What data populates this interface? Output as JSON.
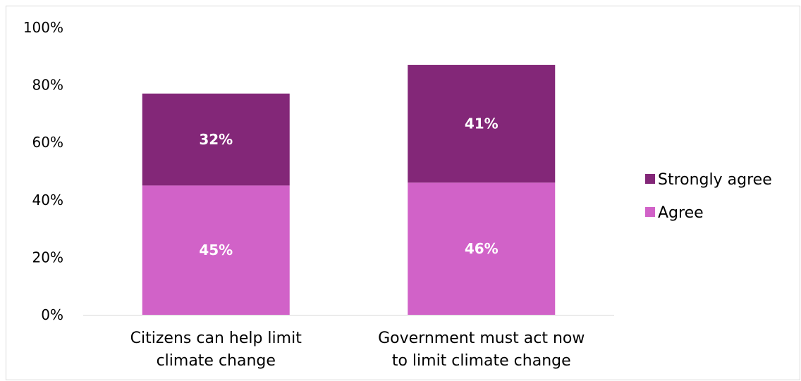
{
  "chart_data": {
    "type": "bar",
    "stacked": true,
    "categories": [
      [
        "Citizens can help limit",
        "climate change"
      ],
      [
        "Government must act now",
        "to limit climate change"
      ]
    ],
    "series": [
      {
        "name": "Agree",
        "values": [
          45,
          46
        ],
        "labels": [
          "45%",
          "46%"
        ],
        "color": "#d162c8"
      },
      {
        "name": "Strongly agree",
        "values": [
          32,
          41
        ],
        "labels": [
          "32%",
          "41%"
        ],
        "color": "#832778"
      }
    ],
    "ylim": [
      0,
      100
    ],
    "yticks": [
      "0%",
      "20%",
      "40%",
      "60%",
      "80%",
      "100%"
    ],
    "grid": false,
    "legend": {
      "position": "right",
      "order": [
        "Strongly agree",
        "Agree"
      ]
    },
    "title": "",
    "xlabel": "",
    "ylabel": ""
  }
}
